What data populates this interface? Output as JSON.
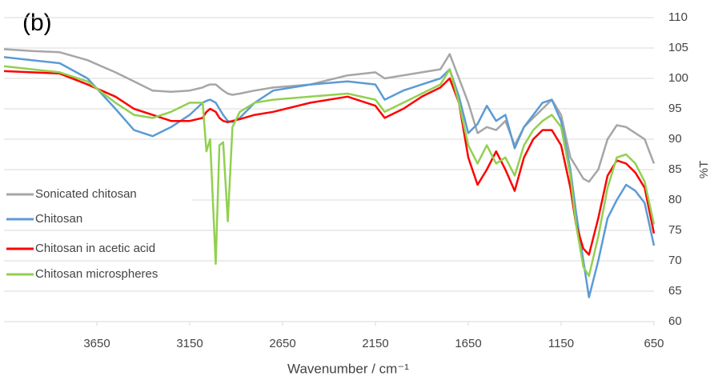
{
  "chart_data": {
    "type": "line",
    "title": "(b)",
    "x_label": "Wavenumber / cm⁻¹",
    "y_label": "%T",
    "x": [
      4150,
      4000,
      3850,
      3700,
      3550,
      3450,
      3350,
      3250,
      3150,
      3080,
      3060,
      3040,
      3010,
      2990,
      2970,
      2945,
      2920,
      2880,
      2800,
      2700,
      2500,
      2300,
      2150,
      2100,
      2000,
      1900,
      1800,
      1750,
      1700,
      1650,
      1600,
      1550,
      1500,
      1450,
      1400,
      1350,
      1300,
      1250,
      1200,
      1150,
      1100,
      1070,
      1030,
      1000,
      950,
      900,
      850,
      800,
      750,
      700,
      650
    ],
    "series": [
      {
        "name": "Sonicated chitosan",
        "color": "#a6a6a6",
        "values": [
          104.8,
          104.5,
          104.3,
          103,
          101,
          99.5,
          98,
          97.8,
          98,
          98.5,
          98.8,
          99,
          99,
          98.5,
          98,
          97.5,
          97.3,
          97.5,
          98,
          98.5,
          99,
          100.5,
          101,
          100,
          100.5,
          101,
          101.5,
          104,
          100,
          96,
          91,
          92,
          91.5,
          93,
          89,
          92,
          93.5,
          95,
          96.5,
          94,
          87,
          85.5,
          83.5,
          83,
          85,
          90,
          92.3,
          92,
          91,
          90,
          86
        ]
      },
      {
        "name": "Chitosan",
        "color": "#5b9bd5",
        "values": [
          103.5,
          103,
          102.5,
          100,
          95,
          91.5,
          90.5,
          92,
          94,
          96,
          96.3,
          96.5,
          96,
          95,
          94,
          93,
          92.8,
          93.5,
          96,
          98,
          99,
          99.5,
          99,
          96.5,
          98,
          99,
          100,
          101.5,
          97,
          91,
          92.5,
          95.5,
          93,
          94,
          88.5,
          92,
          94,
          96,
          96.5,
          93,
          85,
          78,
          70,
          64,
          70,
          77,
          80,
          82.5,
          81.5,
          79.5,
          72.5
        ]
      },
      {
        "name": "Chitosan in acetic acid",
        "color": "#ff0000",
        "values": [
          101.2,
          101,
          100.8,
          99,
          97,
          95,
          94,
          93,
          93,
          93.5,
          94.5,
          95,
          94.5,
          93.5,
          93,
          92.8,
          93,
          93.3,
          94,
          94.5,
          96,
          97,
          95.5,
          93.5,
          95,
          97,
          98.5,
          100,
          96,
          87,
          82.5,
          85,
          88,
          85,
          81.5,
          87,
          90,
          91.5,
          91.5,
          89,
          82,
          76,
          72,
          71,
          77,
          84,
          86.5,
          86,
          84.5,
          82,
          74.5
        ]
      },
      {
        "name": "Chitosan microspheres",
        "color": "#92d050",
        "values": [
          102,
          101.5,
          101,
          99.5,
          96,
          94,
          93.5,
          94.5,
          96,
          96,
          88,
          90,
          69.5,
          89,
          89.5,
          76.5,
          92,
          94.5,
          96,
          96.5,
          97,
          97.5,
          96.5,
          94.5,
          96,
          97.5,
          99,
          101.5,
          96,
          89,
          86,
          89,
          86,
          87,
          84,
          89,
          91.5,
          93,
          94,
          92,
          84,
          76,
          69,
          67.5,
          74,
          82,
          87,
          87.5,
          86,
          83,
          76
        ]
      }
    ],
    "xlim": [
      4150,
      650
    ],
    "xticks": [
      3650,
      3150,
      2650,
      2150,
      1650,
      1150,
      650
    ],
    "ylim": [
      60,
      110
    ],
    "yticks": [
      60,
      65,
      70,
      75,
      80,
      85,
      90,
      95,
      100,
      105,
      110
    ],
    "grid": true,
    "legend": "left"
  }
}
